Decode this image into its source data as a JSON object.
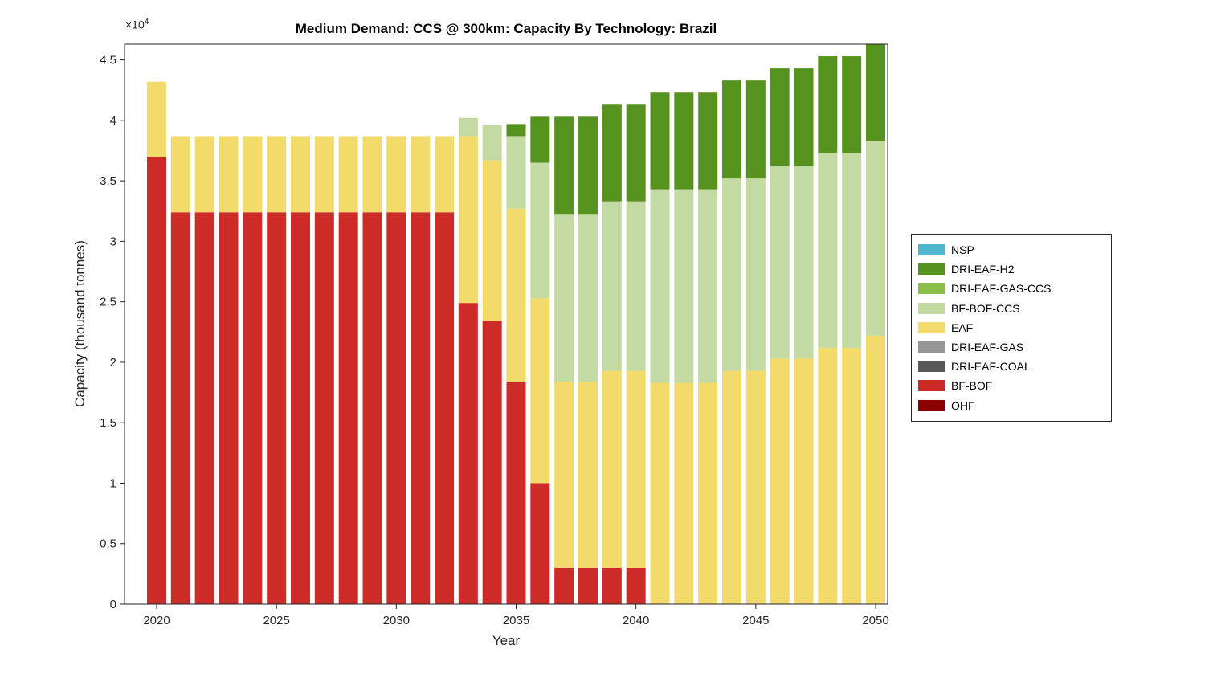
{
  "figure": {
    "background": "#ffffff"
  },
  "chart_data": {
    "type": "bar",
    "stacked": true,
    "title": "Medium Demand: CCS @ 300km: Capacity By Technology: Brazil",
    "xlabel": "Year",
    "ylabel": "Capacity (thousand tonnes)",
    "y_multiplier_base": "×10",
    "y_multiplier_exp": "4",
    "ylim": [
      0,
      46300
    ],
    "grid": false,
    "legend_position": "right",
    "ytick_values": [
      0,
      5000,
      10000,
      15000,
      20000,
      25000,
      30000,
      35000,
      40000,
      45000
    ],
    "ytick_labels": [
      "0",
      "0.5",
      "1",
      "1.5",
      "2",
      "2.5",
      "3",
      "3.5",
      "4",
      "4.5"
    ],
    "xtick_values": [
      2020,
      2025,
      2030,
      2035,
      2040,
      2045,
      2050
    ],
    "xtick_labels": [
      "2020",
      "2025",
      "2030",
      "2035",
      "2040",
      "2045",
      "2050"
    ],
    "years": [
      2020,
      2021,
      2022,
      2023,
      2024,
      2025,
      2026,
      2027,
      2028,
      2029,
      2030,
      2031,
      2032,
      2033,
      2034,
      2035,
      2036,
      2037,
      2038,
      2039,
      2040,
      2041,
      2042,
      2043,
      2044,
      2045,
      2046,
      2047,
      2048,
      2049,
      2050
    ],
    "series": [
      {
        "name": "OHF",
        "color": "#8B0000",
        "values": [
          0,
          0,
          0,
          0,
          0,
          0,
          0,
          0,
          0,
          0,
          0,
          0,
          0,
          0,
          0,
          0,
          0,
          0,
          0,
          0,
          0,
          0,
          0,
          0,
          0,
          0,
          0,
          0,
          0,
          0,
          0
        ]
      },
      {
        "name": "BF-BOF",
        "color": "#CD2B28",
        "values": [
          37000,
          32400,
          32400,
          32400,
          32400,
          32400,
          32400,
          32400,
          32400,
          32400,
          32400,
          32400,
          32400,
          24900,
          23400,
          18400,
          10000,
          3000,
          3000,
          3000,
          3000,
          0,
          0,
          0,
          0,
          0,
          0,
          0,
          0,
          0,
          0
        ]
      },
      {
        "name": "DRI-EAF-COAL",
        "color": "#595959",
        "values": [
          0,
          0,
          0,
          0,
          0,
          0,
          0,
          0,
          0,
          0,
          0,
          0,
          0,
          0,
          0,
          0,
          0,
          0,
          0,
          0,
          0,
          0,
          0,
          0,
          0,
          0,
          0,
          0,
          0,
          0,
          0
        ]
      },
      {
        "name": "DRI-EAF-GAS",
        "color": "#969696",
        "values": [
          0,
          0,
          0,
          0,
          0,
          0,
          0,
          0,
          0,
          0,
          0,
          0,
          0,
          0,
          0,
          0,
          0,
          0,
          0,
          0,
          0,
          0,
          0,
          0,
          0,
          0,
          0,
          0,
          0,
          0,
          0
        ]
      },
      {
        "name": "EAF",
        "color": "#F2DB6B",
        "values": [
          6200,
          6300,
          6300,
          6300,
          6300,
          6300,
          6300,
          6300,
          6300,
          6300,
          6300,
          6300,
          6300,
          13800,
          13300,
          14300,
          15300,
          15400,
          15400,
          16300,
          16300,
          18300,
          18300,
          18300,
          19300,
          19300,
          20300,
          20300,
          21200,
          21200,
          22200
        ]
      },
      {
        "name": "BF-BOF-CCS",
        "color": "#C3DBA2",
        "values": [
          0,
          0,
          0,
          0,
          0,
          0,
          0,
          0,
          0,
          0,
          0,
          0,
          0,
          1500,
          2900,
          6000,
          11200,
          13800,
          13800,
          14000,
          14000,
          16000,
          16000,
          16000,
          15900,
          15900,
          15900,
          15900,
          16100,
          16100,
          16100
        ]
      },
      {
        "name": "DRI-EAF-GAS-CCS",
        "color": "#8CBE4A",
        "values": [
          0,
          0,
          0,
          0,
          0,
          0,
          0,
          0,
          0,
          0,
          0,
          0,
          0,
          0,
          0,
          0,
          0,
          0,
          0,
          0,
          0,
          0,
          0,
          0,
          0,
          0,
          0,
          0,
          0,
          0,
          0
        ]
      },
      {
        "name": "DRI-EAF-H2",
        "color": "#56921E",
        "values": [
          0,
          0,
          0,
          0,
          0,
          0,
          0,
          0,
          0,
          0,
          0,
          0,
          0,
          0,
          0,
          1000,
          3800,
          8100,
          8100,
          8000,
          8000,
          8000,
          8000,
          8000,
          8100,
          8100,
          8100,
          8100,
          8000,
          8000,
          8200
        ]
      },
      {
        "name": "NSP",
        "color": "#4FB7CB",
        "values": [
          0,
          0,
          0,
          0,
          0,
          0,
          0,
          0,
          0,
          0,
          0,
          0,
          0,
          0,
          0,
          0,
          0,
          0,
          0,
          0,
          0,
          0,
          0,
          0,
          0,
          0,
          0,
          0,
          0,
          0,
          0
        ]
      }
    ],
    "legend": [
      {
        "label": "NSP",
        "color": "#4FB7CB"
      },
      {
        "label": "DRI-EAF-H2",
        "color": "#56921E"
      },
      {
        "label": "DRI-EAF-GAS-CCS",
        "color": "#8CBE4A"
      },
      {
        "label": "BF-BOF-CCS",
        "color": "#C3DBA2"
      },
      {
        "label": "EAF",
        "color": "#F2DB6B"
      },
      {
        "label": "DRI-EAF-GAS",
        "color": "#969696"
      },
      {
        "label": "DRI-EAF-COAL",
        "color": "#595959"
      },
      {
        "label": "BF-BOF",
        "color": "#CD2B28"
      },
      {
        "label": "OHF",
        "color": "#8B0000"
      }
    ]
  }
}
